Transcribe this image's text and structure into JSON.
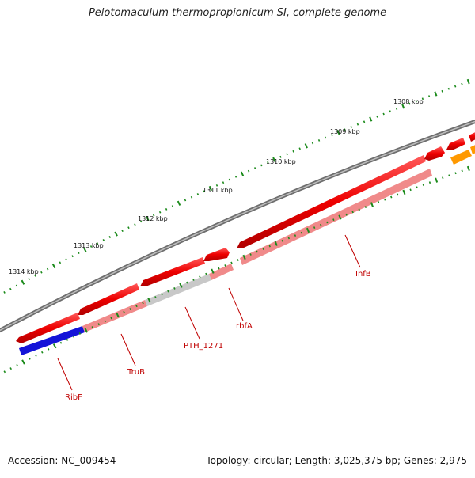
{
  "title": "Pelotomaculum thermopropionicum SI, complete genome",
  "footer": {
    "accession": "Accession: NC_009454",
    "summary": "Topology: circular; Length: 3,025,375 bp; Genes: 2,975"
  },
  "scale_labels": [
    "1308 kbp",
    "1309 kbp",
    "1310 kbp",
    "1311 kbp",
    "1312 kbp",
    "1313 kbp",
    "1314 kbp"
  ],
  "gene_labels": [
    "InfB",
    "rbfA",
    "PTH_1271",
    "TruB",
    "RibF"
  ],
  "colors": {
    "backbone": "#7a7a7a",
    "cds": "#e00000",
    "gene": "#f08a8a",
    "pseudo": "#c8c8c8",
    "blue_feature": "#1414d8",
    "orange_feature": "#ff9900",
    "label": "#c00000",
    "scale_tick": "#1a8a1a"
  }
}
